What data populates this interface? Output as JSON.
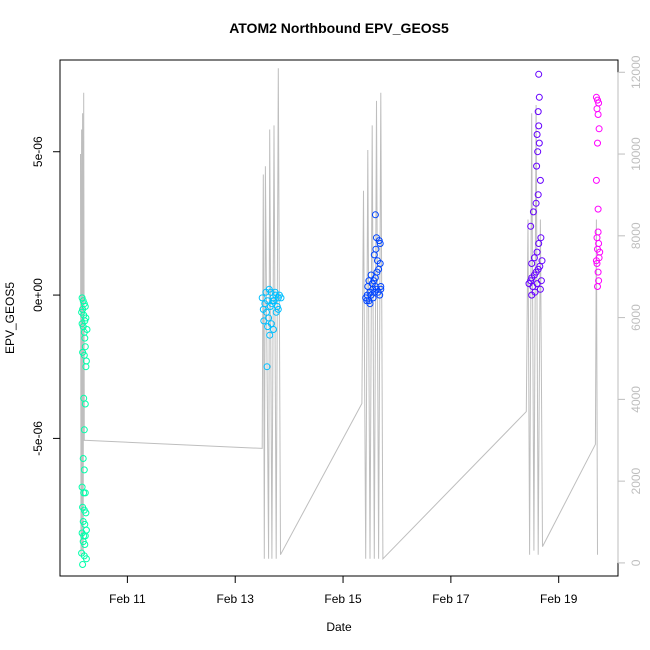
{
  "chart_data": {
    "type": "scatter",
    "title": "ATOM2 Northbound EPV_GEOS5",
    "xlabel": "Date",
    "ylabel": "EPV_GEOS5",
    "x_ticks": [
      "Feb 11",
      "Feb 13",
      "Feb 15",
      "Feb 17",
      "Feb 19"
    ],
    "x_tick_days": [
      11,
      13,
      15,
      17,
      19
    ],
    "xlim_days": [
      9.75,
      20.1
    ],
    "y_ticks": [
      "-5e-06",
      "0e+00",
      "5e-06"
    ],
    "y_tick_values": [
      -5e-06,
      0,
      5e-06
    ],
    "ylim": [
      -9.8e-06,
      8.2e-06
    ],
    "right_axis": {
      "ticks": [
        "0",
        "2000",
        "4000",
        "6000",
        "8000",
        "10000",
        "12000"
      ],
      "tick_values": [
        0,
        2000,
        4000,
        6000,
        8000,
        10000,
        12000
      ],
      "ylim": [
        -320,
        12300
      ],
      "color": "#bebebe"
    },
    "colors": {
      "flight1": "#00ffaa",
      "flight2": "#00bfff",
      "flight3": "#0044ff",
      "flight4": "#6600ff",
      "flight5": "#ff00ff",
      "altitude_line": "#bebebe"
    },
    "series": [
      {
        "color": "#00ffaa",
        "points": [
          [
            10.16,
            -1e-07
          ],
          [
            10.18,
            -2e-07
          ],
          [
            10.2,
            -3e-07
          ],
          [
            10.17,
            -5e-07
          ],
          [
            10.19,
            -7e-07
          ],
          [
            10.21,
            -9e-07
          ],
          [
            10.15,
            -6e-07
          ],
          [
            10.22,
            -4e-07
          ],
          [
            10.18,
            -1.1e-06
          ],
          [
            10.2,
            -1.3e-06
          ],
          [
            10.23,
            -8e-07
          ],
          [
            10.16,
            -1e-06
          ],
          [
            10.25,
            -1.2e-06
          ],
          [
            10.21,
            -1.5e-06
          ],
          [
            10.17,
            -2e-06
          ],
          [
            10.22,
            -1.8e-06
          ],
          [
            10.24,
            -2.3e-06
          ],
          [
            10.2,
            -2.1e-06
          ],
          [
            10.19,
            -3.6e-06
          ],
          [
            10.22,
            -3.8e-06
          ],
          [
            10.18,
            -5.7e-06
          ],
          [
            10.2,
            -6.1e-06
          ],
          [
            10.16,
            -6.7e-06
          ],
          [
            10.19,
            -6.9e-06
          ],
          [
            10.22,
            -6.9e-06
          ],
          [
            10.17,
            -7.4e-06
          ],
          [
            10.2,
            -7.5e-06
          ],
          [
            10.23,
            -7.6e-06
          ],
          [
            10.18,
            -7.9e-06
          ],
          [
            10.21,
            -8e-06
          ],
          [
            10.24,
            -8.2e-06
          ],
          [
            10.16,
            -8.3e-06
          ],
          [
            10.19,
            -8.4e-06
          ],
          [
            10.22,
            -8.4e-06
          ],
          [
            10.18,
            -8.6e-06
          ],
          [
            10.21,
            -8.7e-06
          ],
          [
            10.15,
            -9e-06
          ],
          [
            10.2,
            -9.1e-06
          ],
          [
            10.24,
            -9.2e-06
          ],
          [
            10.17,
            -9.4e-06
          ],
          [
            10.2,
            -4.7e-06
          ],
          [
            10.23,
            -2.5e-06
          ]
        ]
      },
      {
        "color": "#00bfff",
        "points": [
          [
            13.5,
            -1e-07
          ],
          [
            13.55,
            -3e-07
          ],
          [
            13.6,
            -2e-07
          ],
          [
            13.65,
            -4e-07
          ],
          [
            13.7,
            -1e-07
          ],
          [
            13.75,
            0
          ],
          [
            13.8,
            -1e-07
          ],
          [
            13.52,
            -5e-07
          ],
          [
            13.58,
            -6e-07
          ],
          [
            13.62,
            -8e-07
          ],
          [
            13.68,
            -3e-07
          ],
          [
            13.72,
            -2e-07
          ],
          [
            13.78,
            -4e-07
          ],
          [
            13.85,
            -1e-07
          ],
          [
            13.57,
            1e-07
          ],
          [
            13.63,
            2e-07
          ],
          [
            13.66,
            1e-07
          ],
          [
            13.74,
            1e-07
          ],
          [
            13.82,
            0
          ],
          [
            13.53,
            -9e-07
          ],
          [
            13.6,
            -1.1e-06
          ],
          [
            13.67,
            -1e-06
          ],
          [
            13.71,
            -1.2e-06
          ],
          [
            13.76,
            -6e-07
          ],
          [
            13.64,
            -1.4e-06
          ],
          [
            13.59,
            -2.5e-06
          ],
          [
            13.7,
            -2e-07
          ],
          [
            13.8,
            -5e-07
          ]
        ]
      },
      {
        "color": "#0044ff",
        "points": [
          [
            15.42,
            -1e-07
          ],
          [
            15.45,
            0
          ],
          [
            15.48,
            -2e-07
          ],
          [
            15.5,
            1e-07
          ],
          [
            15.52,
            0
          ],
          [
            15.55,
            2e-07
          ],
          [
            15.58,
            1e-07
          ],
          [
            15.6,
            3e-07
          ],
          [
            15.62,
            2e-07
          ],
          [
            15.65,
            1e-07
          ],
          [
            15.68,
            0
          ],
          [
            15.7,
            2e-07
          ],
          [
            15.46,
            3e-07
          ],
          [
            15.5,
            -3e-07
          ],
          [
            15.54,
            4e-07
          ],
          [
            15.57,
            5e-07
          ],
          [
            15.6,
            6e-07
          ],
          [
            15.63,
            8e-07
          ],
          [
            15.66,
            9e-07
          ],
          [
            15.69,
            1.1e-06
          ],
          [
            15.52,
            7e-07
          ],
          [
            15.58,
            1.4e-06
          ],
          [
            15.61,
            1.6e-06
          ],
          [
            15.64,
            1.2e-06
          ],
          [
            15.67,
            1.9e-06
          ],
          [
            15.69,
            1.8e-06
          ],
          [
            15.62,
            2e-06
          ],
          [
            15.6,
            2.8e-06
          ],
          [
            15.44,
            -2e-07
          ],
          [
            15.56,
            -1e-07
          ],
          [
            15.7,
            3e-07
          ],
          [
            15.48,
            5e-07
          ]
        ]
      },
      {
        "color": "#6600ff",
        "points": [
          [
            18.45,
            4e-07
          ],
          [
            18.48,
            5e-07
          ],
          [
            18.5,
            6e-07
          ],
          [
            18.52,
            3e-07
          ],
          [
            18.55,
            7e-07
          ],
          [
            18.58,
            8e-07
          ],
          [
            18.6,
            4e-07
          ],
          [
            18.62,
            9e-07
          ],
          [
            18.65,
            1e-06
          ],
          [
            18.68,
            5e-07
          ],
          [
            18.5,
            1.1e-06
          ],
          [
            18.55,
            1.3e-06
          ],
          [
            18.6,
            1.5e-06
          ],
          [
            18.63,
            1.8e-06
          ],
          [
            18.67,
            2e-06
          ],
          [
            18.48,
            2.4e-06
          ],
          [
            18.53,
            2.9e-06
          ],
          [
            18.58,
            3.2e-06
          ],
          [
            18.62,
            3.5e-06
          ],
          [
            18.66,
            4e-06
          ],
          [
            18.59,
            4.5e-06
          ],
          [
            18.61,
            5e-06
          ],
          [
            18.64,
            5.3e-06
          ],
          [
            18.6,
            5.6e-06
          ],
          [
            18.63,
            5.9e-06
          ],
          [
            18.62,
            6.4e-06
          ],
          [
            18.64,
            6.9e-06
          ],
          [
            18.63,
            7.7e-06
          ],
          [
            18.5,
            0
          ],
          [
            18.56,
            1e-07
          ],
          [
            18.66,
            2e-07
          ],
          [
            18.69,
            1.2e-06
          ]
        ]
      },
      {
        "color": "#ff00ff",
        "points": [
          [
            19.7,
            6.9e-06
          ],
          [
            19.72,
            6.8e-06
          ],
          [
            19.74,
            6.7e-06
          ],
          [
            19.71,
            6.5e-06
          ],
          [
            19.73,
            6.3e-06
          ],
          [
            19.75,
            5.8e-06
          ],
          [
            19.72,
            5.3e-06
          ],
          [
            19.7,
            4e-06
          ],
          [
            19.73,
            3e-06
          ],
          [
            19.71,
            2e-06
          ],
          [
            19.74,
            1.8e-06
          ],
          [
            19.72,
            1.6e-06
          ],
          [
            19.75,
            1.3e-06
          ],
          [
            19.71,
            1.1e-06
          ],
          [
            19.73,
            8e-07
          ],
          [
            19.74,
            5e-07
          ],
          [
            19.72,
            3e-07
          ],
          [
            19.7,
            1.2e-06
          ],
          [
            19.76,
            1.5e-06
          ],
          [
            19.73,
            2.2e-06
          ]
        ]
      }
    ],
    "altitude_line": [
      [
        10.13,
        10000
      ],
      [
        10.14,
        200
      ],
      [
        10.15,
        10600
      ],
      [
        10.16,
        300
      ],
      [
        10.17,
        11000
      ],
      [
        10.18,
        200
      ],
      [
        10.19,
        11500
      ],
      [
        10.2,
        3000
      ],
      [
        13.5,
        2800
      ],
      [
        13.52,
        9500
      ],
      [
        13.54,
        100
      ],
      [
        13.56,
        9700
      ],
      [
        13.62,
        100
      ],
      [
        13.64,
        10600
      ],
      [
        13.68,
        100
      ],
      [
        13.72,
        10700
      ],
      [
        13.76,
        100
      ],
      [
        13.8,
        12100
      ],
      [
        13.84,
        200
      ],
      [
        15.35,
        3900
      ],
      [
        15.38,
        9100
      ],
      [
        15.42,
        100
      ],
      [
        15.46,
        10100
      ],
      [
        15.5,
        100
      ],
      [
        15.54,
        10700
      ],
      [
        15.58,
        100
      ],
      [
        15.62,
        11300
      ],
      [
        15.66,
        100
      ],
      [
        15.7,
        11500
      ],
      [
        15.74,
        100
      ],
      [
        18.4,
        3700
      ],
      [
        18.43,
        8400
      ],
      [
        18.46,
        200
      ],
      [
        18.5,
        11000
      ],
      [
        18.54,
        300
      ],
      [
        18.58,
        11200
      ],
      [
        18.62,
        200
      ],
      [
        18.66,
        8400
      ],
      [
        18.7,
        400
      ],
      [
        19.68,
        2900
      ],
      [
        19.7,
        8400
      ],
      [
        19.72,
        200
      ]
    ]
  }
}
